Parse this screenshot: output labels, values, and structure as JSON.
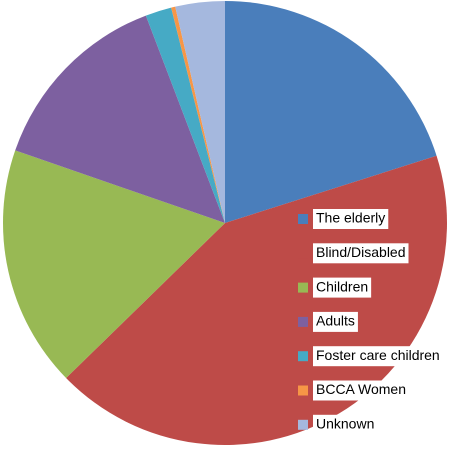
{
  "chart_data": {
    "type": "pie",
    "categories": [
      "The elderly",
      "Blind/Disabled",
      "Children",
      "Adults",
      "Foster care children",
      "BCCA Women",
      "Unknown"
    ],
    "values": [
      20.1,
      42.6,
      17.6,
      13.9,
      1.9,
      0.3,
      3.6
    ],
    "colors": [
      "#4a7ebb",
      "#be4b48",
      "#98b954",
      "#7d60a0",
      "#46aac5",
      "#f79646",
      "#a5b8de"
    ],
    "legend": "right"
  }
}
